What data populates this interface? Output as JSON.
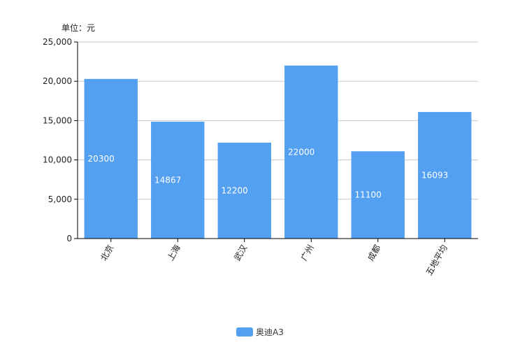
{
  "unit_label": "单位：元",
  "colors": {
    "bar": "#539FF0",
    "grid": "#c8c8c8",
    "axis": "#000000",
    "label_text": "#ffffff"
  },
  "chart_data": {
    "type": "bar",
    "categories": [
      "北京",
      "上海",
      "武汉",
      "广州",
      "成都",
      "五地平均"
    ],
    "series": [
      {
        "name": "奥迪A3",
        "values": [
          20300,
          14867,
          12200,
          22000,
          11100,
          16093
        ]
      }
    ],
    "ylim": [
      0,
      25000
    ],
    "yticks": [
      "0",
      "5,000",
      "10,000",
      "15,000",
      "20,000",
      "25,000"
    ],
    "ytick_values": [
      0,
      5000,
      10000,
      15000,
      20000,
      25000
    ],
    "grid": true,
    "legend": "bottom",
    "ylabel_unit": "单位：元"
  }
}
